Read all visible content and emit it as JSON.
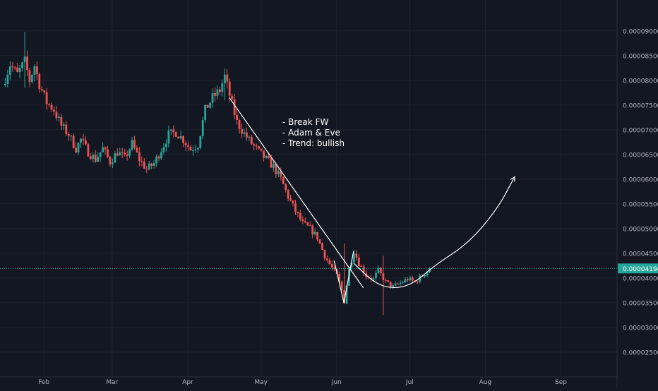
{
  "colors": {
    "background": "#131722",
    "grid": "#1e222d",
    "axis_text": "#b2b5be",
    "up": "#26a69a",
    "down": "#ef5350",
    "price_line": "#26a69a",
    "price_tag_bg": "#26a69a",
    "price_tag_text": "#ffffff",
    "annotation": "#ffffff"
  },
  "chart_data": {
    "type": "candlestick",
    "x_axis": {
      "type": "date",
      "range": [
        "2021-01-14",
        "2021-09-24"
      ],
      "tick_labels": [
        "Feb",
        "Mar",
        "Apr",
        "May",
        "Jun",
        "Jul",
        "Aug",
        "Sep"
      ],
      "tick_dates": [
        "2021-02-01",
        "2021-03-01",
        "2021-04-01",
        "2021-05-01",
        "2021-06-01",
        "2021-07-01",
        "2021-08-01",
        "2021-09-01"
      ]
    },
    "y_axis": {
      "range": [
        2e-05,
        9.625e-05
      ],
      "position": "right",
      "tick_labels": [
        "0.00002500",
        "0.00003000",
        "0.00003500",
        "0.00004000",
        "0.00004500",
        "0.00005000",
        "0.00005500",
        "0.00006000",
        "0.00006500",
        "0.00007000",
        "0.00007500",
        "0.00008000",
        "0.00008500",
        "0.00009000"
      ],
      "tick_values": [
        2.5e-05,
        3e-05,
        3.5e-05,
        4e-05,
        4.5e-05,
        5e-05,
        5.5e-05,
        6e-05,
        6.5e-05,
        7e-05,
        7.5e-05,
        8e-05,
        8.5e-05,
        9e-05
      ]
    },
    "grid": true,
    "current_price": {
      "value": 4.194e-05,
      "label": "0.00004194"
    },
    "price_path": [
      [
        "2021-01-15",
        7.9e-05
      ],
      [
        "2021-01-18",
        8.32e-05
      ],
      [
        "2021-01-21",
        8.12e-05
      ],
      [
        "2021-01-24",
        8.38e-05
      ],
      [
        "2021-01-26",
        8e-05
      ],
      [
        "2021-01-28",
        8.3e-05
      ],
      [
        "2021-01-30",
        7.92e-05
      ],
      [
        "2021-02-02",
        7.55e-05
      ],
      [
        "2021-02-05",
        7.4e-05
      ],
      [
        "2021-02-08",
        7.08e-05
      ],
      [
        "2021-02-11",
        6.9e-05
      ],
      [
        "2021-02-14",
        6.62e-05
      ],
      [
        "2021-02-16",
        6.8e-05
      ],
      [
        "2021-02-19",
        6.55e-05
      ],
      [
        "2021-02-22",
        6.4e-05
      ],
      [
        "2021-02-25",
        6.62e-05
      ],
      [
        "2021-02-28",
        6.35e-05
      ],
      [
        "2021-03-03",
        6.55e-05
      ],
      [
        "2021-03-06",
        6.42e-05
      ],
      [
        "2021-03-09",
        6.72e-05
      ],
      [
        "2021-03-12",
        6.4e-05
      ],
      [
        "2021-03-15",
        6.2e-05
      ],
      [
        "2021-03-18",
        6.32e-05
      ],
      [
        "2021-03-21",
        6.6e-05
      ],
      [
        "2021-03-24",
        6.9e-05
      ],
      [
        "2021-03-27",
        6.95e-05
      ],
      [
        "2021-03-30",
        6.8e-05
      ],
      [
        "2021-04-02",
        6.6e-05
      ],
      [
        "2021-04-05",
        6.7e-05
      ],
      [
        "2021-04-08",
        7.4e-05
      ],
      [
        "2021-04-11",
        7.65e-05
      ],
      [
        "2021-04-14",
        7.8e-05
      ],
      [
        "2021-04-16",
        8.08e-05
      ],
      [
        "2021-04-18",
        7.7e-05
      ],
      [
        "2021-04-21",
        7.15e-05
      ],
      [
        "2021-04-24",
        6.92e-05
      ],
      [
        "2021-04-27",
        6.72e-05
      ],
      [
        "2021-04-30",
        6.55e-05
      ],
      [
        "2021-05-03",
        6.4e-05
      ],
      [
        "2021-05-06",
        6.25e-05
      ],
      [
        "2021-05-09",
        6e-05
      ],
      [
        "2021-05-12",
        5.65e-05
      ],
      [
        "2021-05-15",
        5.35e-05
      ],
      [
        "2021-05-18",
        5.1e-05
      ],
      [
        "2021-05-21",
        5e-05
      ],
      [
        "2021-05-24",
        4.82e-05
      ],
      [
        "2021-05-27",
        4.45e-05
      ],
      [
        "2021-05-30",
        4.2e-05
      ],
      [
        "2021-06-01",
        4.05e-05
      ],
      [
        "2021-06-03",
        3.75e-05
      ],
      [
        "2021-06-04",
        3.52e-05
      ],
      [
        "2021-06-06",
        4.2e-05
      ],
      [
        "2021-06-08",
        4.55e-05
      ],
      [
        "2021-06-10",
        4.3e-05
      ],
      [
        "2021-06-13",
        4.05e-05
      ],
      [
        "2021-06-16",
        3.98e-05
      ],
      [
        "2021-06-18",
        4.15e-05
      ],
      [
        "2021-06-21",
        3.92e-05
      ],
      [
        "2021-06-24",
        3.82e-05
      ],
      [
        "2021-06-27",
        3.9e-05
      ],
      [
        "2021-06-30",
        3.98e-05
      ],
      [
        "2021-07-03",
        3.92e-05
      ],
      [
        "2021-07-06",
        4.05e-05
      ],
      [
        "2021-07-09",
        4.19e-05
      ]
    ],
    "wick_extremes": [
      [
        "2021-01-24",
        8.98e-05,
        7.85e-05
      ],
      [
        "2021-04-16",
        8.24e-05,
        7.6e-05
      ],
      [
        "2021-06-04",
        4.7e-05,
        3.5e-05
      ],
      [
        "2021-06-20",
        4.45e-05,
        3.25e-05
      ]
    ],
    "drawings": [
      {
        "kind": "trendline",
        "points": [
          [
            "2021-04-18",
            7.65e-05
          ],
          [
            "2021-06-12",
            3.8e-05
          ]
        ]
      },
      {
        "kind": "curve",
        "shape": "rounded-bottom",
        "points": [
          [
            "2021-06-08",
            4.3e-05
          ],
          [
            "2021-06-17",
            3.88e-05
          ],
          [
            "2021-06-25",
            3.78e-05
          ],
          [
            "2021-07-03",
            3.9e-05
          ],
          [
            "2021-07-11",
            4.25e-05
          ],
          [
            "2021-07-25",
            4.7e-05
          ],
          [
            "2021-08-06",
            5.4e-05
          ],
          [
            "2021-08-13",
            6.05e-05
          ]
        ],
        "arrow": true
      },
      {
        "kind": "polyline",
        "shape": "sharp-bottom",
        "points": [
          [
            "2021-05-31",
            4.35e-05
          ],
          [
            "2021-06-04",
            3.5e-05
          ],
          [
            "2021-06-08",
            4.55e-05
          ]
        ]
      }
    ],
    "annotation_lines": [
      "- Break FW",
      "- Adam & Eve",
      "- Trend: bullish"
    ]
  }
}
